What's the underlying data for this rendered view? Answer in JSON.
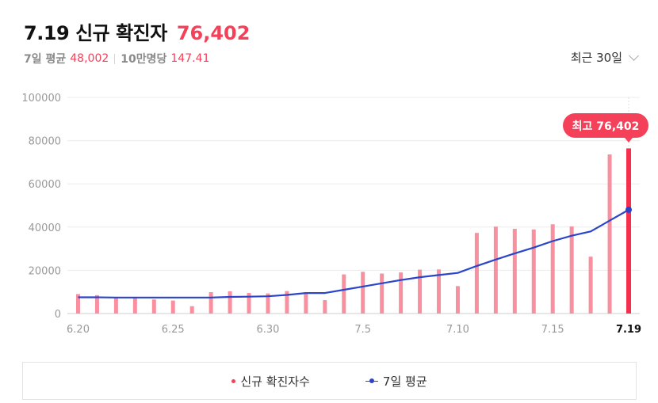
{
  "header": {
    "title": "7.19 신규 확진자",
    "value": "76,402"
  },
  "stats": {
    "avg_label": "7일 평균",
    "avg_value": "48,002",
    "per100k_label": "10만명당",
    "per100k_value": "147.41"
  },
  "period_selector": {
    "label": "최근 30일"
  },
  "legend": {
    "series1": "신규 확진자수",
    "series2": "7일 평균"
  },
  "colors": {
    "bar": "#f8909f",
    "bar_highlight": "#f5304f",
    "line": "#2a45c9",
    "accent": "#f5405a"
  },
  "chart_data": {
    "type": "bar",
    "categories": [
      "6.20",
      "6.21",
      "6.22",
      "6.23",
      "6.24",
      "6.25",
      "6.26",
      "6.27",
      "6.28",
      "6.29",
      "6.30",
      "7.1",
      "7.2",
      "7.3",
      "7.4",
      "7.5",
      "7.6",
      "7.7",
      "7.8",
      "7.9",
      "7.10",
      "7.11",
      "7.12",
      "7.13",
      "7.14",
      "7.15",
      "7.16",
      "7.17",
      "7.18",
      "7.19"
    ],
    "x_tick_labels": [
      "6.20",
      "6.25",
      "6.30",
      "7.5",
      "7.10",
      "7.15",
      "7.19"
    ],
    "series": [
      {
        "name": "신규 확진자수",
        "type": "bar",
        "values": [
          9000,
          8500,
          7500,
          7200,
          6500,
          6000,
          3400,
          9900,
          10300,
          9500,
          9300,
          10400,
          9900,
          6200,
          18100,
          19300,
          18500,
          19000,
          20300,
          20400,
          12700,
          37300,
          40200,
          39200,
          38900,
          41300,
          40300,
          26300,
          73600,
          76402
        ]
      },
      {
        "name": "7일 평균",
        "type": "line",
        "values": [
          7500,
          7500,
          7400,
          7400,
          7400,
          7400,
          7400,
          7400,
          7700,
          7800,
          8000,
          8600,
          9500,
          9500,
          11000,
          12500,
          14000,
          15500,
          16800,
          17800,
          18800,
          22000,
          25000,
          27800,
          30500,
          33500,
          36000,
          38000,
          43000,
          48002
        ]
      }
    ],
    "ylim": [
      0,
      100000
    ],
    "y_ticks": [
      "0",
      "20000",
      "40000",
      "60000",
      "80000",
      "100000"
    ],
    "annotation": {
      "label": "최고",
      "value": "76,402"
    },
    "grid": true
  }
}
